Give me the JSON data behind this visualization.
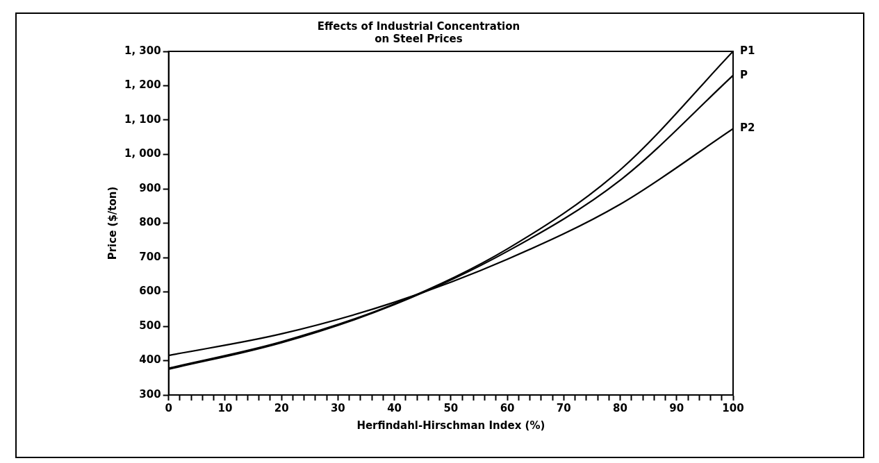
{
  "chart_data": {
    "type": "line",
    "title": "Effects of Industrial Concentration\non Steel Prices",
    "xlabel": "Herfindahl-Hirschman Index (%)",
    "ylabel": "Price ($/ton)",
    "x": [
      0,
      20,
      40,
      60,
      80,
      100
    ],
    "series": [
      {
        "name": "P1",
        "color": "#000000",
        "values": [
          378,
          455,
          565,
          725,
          955,
          1300
        ]
      },
      {
        "name": "P",
        "color": "#000000",
        "values": [
          375,
          452,
          563,
          718,
          925,
          1230
        ]
      },
      {
        "name": "P2",
        "color": "#000000",
        "values": [
          415,
          478,
          570,
          695,
          855,
          1075
        ]
      }
    ],
    "xlim": [
      0,
      100
    ],
    "xticks": [
      0,
      {
        "value": 2,
        "label": null
      },
      {
        "value": 4,
        "label": null
      },
      {
        "value": 6,
        "label": null
      },
      {
        "value": 8,
        "label": null
      },
      10,
      {
        "value": 12,
        "label": null
      },
      {
        "value": 14,
        "label": null
      },
      {
        "value": 16,
        "label": null
      },
      {
        "value": 18,
        "label": null
      },
      20,
      {
        "value": 22,
        "label": null
      },
      {
        "value": 24,
        "label": null
      },
      {
        "value": 26,
        "label": null
      },
      {
        "value": 28,
        "label": null
      },
      30,
      {
        "value": 32,
        "label": null
      },
      {
        "value": 34,
        "label": null
      },
      {
        "value": 36,
        "label": null
      },
      {
        "value": 38,
        "label": null
      },
      40,
      {
        "value": 42,
        "label": null
      },
      {
        "value": 44,
        "label": null
      },
      {
        "value": 46,
        "label": null
      },
      {
        "value": 48,
        "label": null
      },
      50,
      {
        "value": 52,
        "label": null
      },
      {
        "value": 54,
        "label": null
      },
      {
        "value": 56,
        "label": null
      },
      {
        "value": 58,
        "label": null
      },
      60,
      {
        "value": 62,
        "label": null
      },
      {
        "value": 64,
        "label": null
      },
      {
        "value": 66,
        "label": null
      },
      {
        "value": 68,
        "label": null
      },
      70,
      {
        "value": 72,
        "label": null
      },
      {
        "value": 74,
        "label": null
      },
      {
        "value": 76,
        "label": null
      },
      {
        "value": 78,
        "label": null
      },
      80,
      {
        "value": 82,
        "label": null
      },
      {
        "value": 84,
        "label": null
      },
      {
        "value": 86,
        "label": null
      },
      {
        "value": 88,
        "label": null
      },
      90,
      {
        "value": 92,
        "label": null
      },
      {
        "value": 94,
        "label": null
      },
      {
        "value": 96,
        "label": null
      },
      {
        "value": 98,
        "label": null
      },
      100
    ],
    "ylim": [
      300,
      1300
    ],
    "yticks": [
      300,
      400,
      500,
      600,
      700,
      800,
      900,
      {
        "value": 1000,
        "label": "1, 000"
      },
      {
        "value": 1100,
        "label": "1, 100"
      },
      {
        "value": 1200,
        "label": "1, 200"
      },
      {
        "value": 1300,
        "label": "1, 300"
      }
    ],
    "grid": false,
    "legend": false,
    "marker": "none",
    "line_style": "solid"
  }
}
